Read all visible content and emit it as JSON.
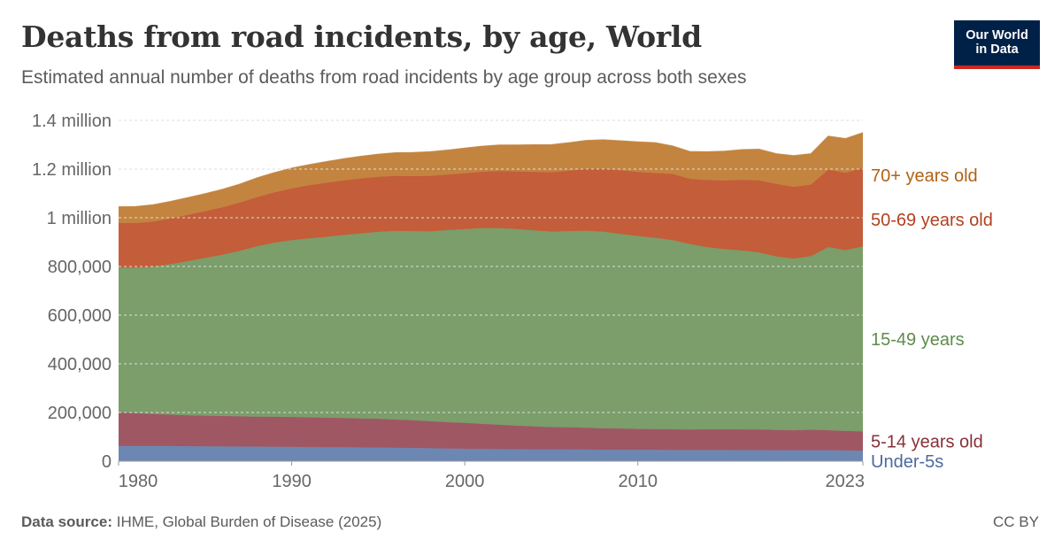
{
  "header": {
    "title": "Deaths from road incidents, by age, World",
    "subtitle": "Estimated annual number of deaths from road incidents by age group across both sexes",
    "logo_line1": "Our World",
    "logo_line2": "in Data"
  },
  "footer": {
    "source_label": "Data source:",
    "source_text": "IHME, Global Burden of Disease (2025)",
    "license": "CC BY"
  },
  "chart_data": {
    "type": "area",
    "stacked": true,
    "x": [
      1980,
      1981,
      1982,
      1983,
      1984,
      1985,
      1986,
      1987,
      1988,
      1989,
      1990,
      1991,
      1992,
      1993,
      1994,
      1995,
      1996,
      1997,
      1998,
      1999,
      2000,
      2001,
      2002,
      2003,
      2004,
      2005,
      2006,
      2007,
      2008,
      2009,
      2010,
      2011,
      2012,
      2013,
      2014,
      2015,
      2016,
      2017,
      2018,
      2019,
      2020,
      2021,
      2022,
      2023
    ],
    "x_ticks": [
      1980,
      1990,
      2000,
      2010,
      2023
    ],
    "y_ticks": [
      0,
      200000,
      400000,
      600000,
      800000,
      1000000,
      1200000,
      1400000
    ],
    "y_tick_labels": [
      "0",
      "200,000",
      "400,000",
      "600,000",
      "800,000",
      "1 million",
      "1.2 million",
      "1.4 million"
    ],
    "ylim": [
      0,
      1400000
    ],
    "grid": true,
    "legend_placement": "right, inline labels",
    "series": [
      {
        "name": "Under-5s",
        "color": "#6d87b3",
        "values": [
          62000,
          62000,
          62000,
          62000,
          61500,
          61000,
          60500,
          60000,
          59500,
          59000,
          58500,
          58000,
          57500,
          57000,
          56500,
          56000,
          55000,
          54000,
          53000,
          52000,
          51000,
          50000,
          49500,
          49000,
          48500,
          48000,
          48000,
          47500,
          47000,
          47000,
          46500,
          46500,
          46000,
          46000,
          46000,
          46000,
          45500,
          45500,
          45000,
          45000,
          45000,
          45000,
          44000,
          43000
        ]
      },
      {
        "name": "5-14 years old",
        "color": "#a05764",
        "values": [
          138000,
          135000,
          132000,
          129000,
          127000,
          126000,
          125000,
          124000,
          123000,
          123000,
          123000,
          122000,
          121000,
          120000,
          119000,
          118000,
          116000,
          114000,
          111000,
          108000,
          106000,
          103000,
          100000,
          97000,
          94000,
          92000,
          91000,
          90000,
          88000,
          87000,
          86000,
          85000,
          85000,
          84000,
          85000,
          85000,
          85000,
          85000,
          83000,
          82000,
          84000,
          82000,
          80000,
          79000
        ]
      },
      {
        "name": "15-49 years",
        "color": "#7b9e6a",
        "values": [
          595000,
          598000,
          605000,
          618000,
          633000,
          648000,
          662000,
          680000,
          700000,
          715000,
          726000,
          735000,
          743000,
          752000,
          760000,
          768000,
          775000,
          777000,
          780000,
          789000,
          796000,
          804000,
          808000,
          808000,
          806000,
          803000,
          806000,
          809000,
          808000,
          799000,
          792000,
          786000,
          777000,
          762000,
          748000,
          740000,
          735000,
          727000,
          713000,
          705000,
          713000,
          752000,
          743000,
          760000
        ]
      },
      {
        "name": "50-69 years old",
        "color": "#c45d3a",
        "values": [
          183000,
          183000,
          185000,
          188000,
          190000,
          192000,
          195000,
          198000,
          202000,
          207000,
          213000,
          218000,
          222000,
          224000,
          226000,
          226000,
          226000,
          226000,
          228000,
          228000,
          230000,
          232000,
          234000,
          236000,
          240000,
          244000,
          248000,
          254000,
          258000,
          262000,
          264000,
          266000,
          272000,
          268000,
          276000,
          282000,
          290000,
          296000,
          298000,
          295000,
          294000,
          318000,
          318000,
          322000
        ]
      },
      {
        "name": "70+ years old",
        "color": "#c3843f",
        "values": [
          67000,
          68000,
          69000,
          70000,
          71000,
          72000,
          74000,
          76000,
          79000,
          81000,
          83000,
          85000,
          87000,
          89000,
          91000,
          93000,
          95000,
          97000,
          99000,
          101000,
          103000,
          105000,
          107000,
          109000,
          111000,
          113000,
          115000,
          117000,
          119000,
          121000,
          123000,
          125000,
          115000,
          112000,
          116000,
          120000,
          124000,
          128000,
          124000,
          128000,
          127000,
          138000,
          140000,
          145000
        ]
      }
    ],
    "label_colors": {
      "70+ years old": "#b16214",
      "50-69 years old": "#b2401d",
      "15-49 years": "#5f8b4c",
      "5-14 years old": "#883039",
      "Under-5s": "#4c6a9c"
    }
  }
}
